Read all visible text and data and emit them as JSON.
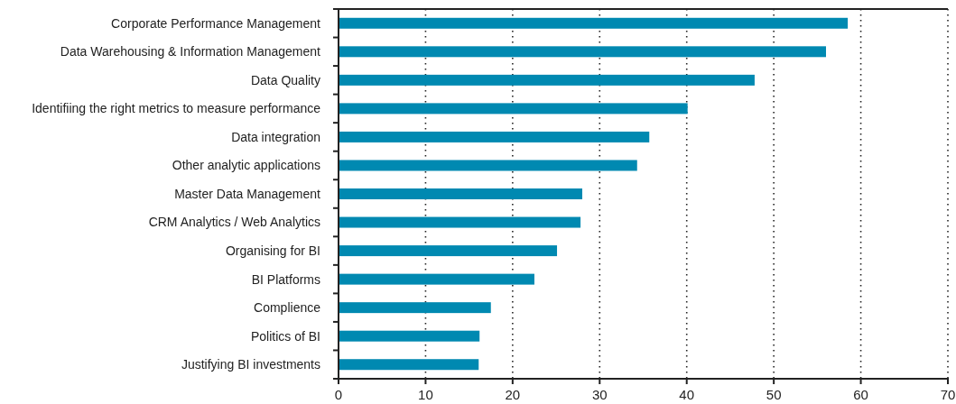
{
  "chart_data": {
    "type": "bar",
    "orientation": "horizontal",
    "categories": [
      "Corporate Performance Management",
      "Data Warehousing & Information Management",
      "Data Quality",
      "Identifiing the right metrics to measure performance",
      "Data integration",
      "Other analytic applications",
      "Master Data Management",
      "CRM Analytics / Web Analytics",
      "Organising for BI",
      "BI Platforms",
      "Complience",
      "Politics of BI",
      "Justifying BI investments"
    ],
    "values": [
      58.5,
      56.0,
      47.8,
      40.1,
      35.7,
      34.3,
      28.0,
      27.8,
      25.1,
      22.5,
      17.5,
      16.2,
      16.1
    ],
    "color": "#0089b1",
    "xlim": [
      0,
      70
    ],
    "xticks": [
      0,
      10,
      20,
      30,
      40,
      50,
      60,
      70
    ],
    "grid": "x"
  }
}
